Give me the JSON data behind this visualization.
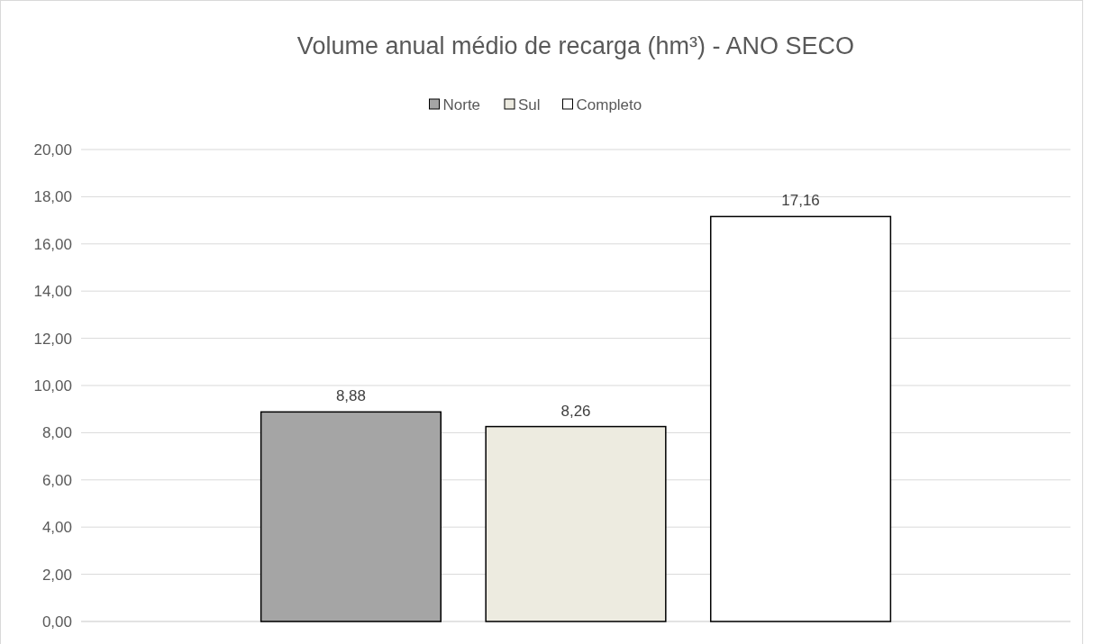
{
  "chart_data": {
    "type": "bar",
    "title": "Volume anual médio de recarga (hm³) - ANO SECO",
    "categories": [
      null
    ],
    "series": [
      {
        "name": "Norte",
        "color": "#a5a5a5",
        "values": [
          8.88
        ],
        "value_labels": [
          "8,88"
        ]
      },
      {
        "name": "Sul",
        "color": "#edebe0",
        "values": [
          8.26
        ],
        "value_labels": [
          "8,26"
        ]
      },
      {
        "name": "Completo",
        "color": "#ffffff",
        "values": [
          17.16
        ],
        "value_labels": [
          "17,16"
        ]
      }
    ],
    "ylim": [
      0,
      20
    ],
    "yticks": [
      {
        "value": 0,
        "label": "0,00"
      },
      {
        "value": 2,
        "label": "2,00"
      },
      {
        "value": 4,
        "label": "4,00"
      },
      {
        "value": 6,
        "label": "6,00"
      },
      {
        "value": 8,
        "label": "8,00"
      },
      {
        "value": 10,
        "label": "10,00"
      },
      {
        "value": 12,
        "label": "12,00"
      },
      {
        "value": 14,
        "label": "14,00"
      },
      {
        "value": 16,
        "label": "16,00"
      },
      {
        "value": 18,
        "label": "18,00"
      },
      {
        "value": 20,
        "label": "20,00"
      }
    ],
    "grid": "y",
    "legend": "top"
  }
}
